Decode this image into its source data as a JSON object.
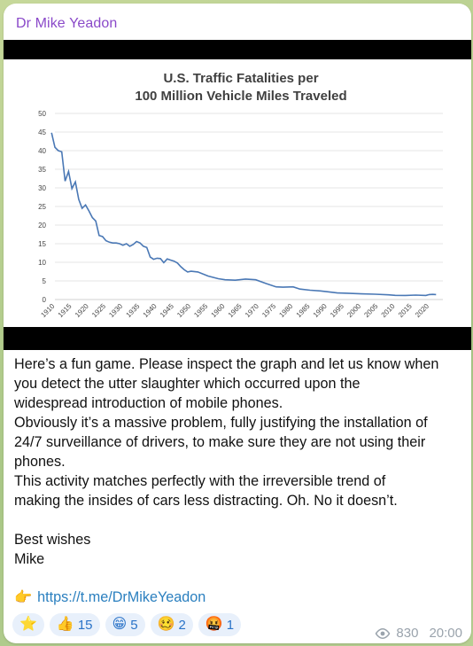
{
  "message": {
    "sender": "Dr Mike Yeadon",
    "text_lines": [
      "Here’s a fun game. Please inspect the graph and let us know when",
      "you detect the utter slaughter which occurred upon the",
      "widespread introduction of mobile phones.",
      "Obviously it’s a massive problem, fully justifying the installation of",
      "24/7 surveillance of drivers, to make sure they are not using their",
      "phones.",
      "This activity matches perfectly with the irreversible trend of",
      "making the insides of cars less distracting. Oh. No it doesn’t.",
      "",
      "Best wishes",
      "Mike"
    ],
    "link": "https://t.me/DrMikeYeadon",
    "link_icon": "pointing-hand-icon",
    "views": "830",
    "time": "20:00",
    "reactions": [
      {
        "emoji": "⭐",
        "icon": "star-icon",
        "count": ""
      },
      {
        "emoji": "👍",
        "icon": "thumbs-up-icon",
        "count": "15"
      },
      {
        "emoji": "😁",
        "icon": "grin-icon",
        "count": "5"
      },
      {
        "emoji": "🥴",
        "icon": "woozy-icon",
        "count": "2"
      },
      {
        "emoji": "🤬",
        "icon": "cursing-icon",
        "count": "1"
      }
    ],
    "colors": {
      "sender": "#8a49c9",
      "link": "#2a7fbf",
      "reaction_bg": "#e8f0fb",
      "reaction_text": "#2a73c8"
    }
  },
  "chart_data": {
    "type": "line",
    "title": "U.S. Traffic Fatalities per",
    "subtitle": "100 Million Vehicle Miles Traveled",
    "xlabel": "",
    "ylabel": "",
    "ylim": [
      0,
      50
    ],
    "yticks": [
      0,
      5,
      10,
      15,
      20,
      25,
      30,
      35,
      40,
      45,
      50
    ],
    "xlim": [
      1910,
      2024
    ],
    "xticks": [
      1910,
      1915,
      1920,
      1925,
      1930,
      1935,
      1940,
      1945,
      1950,
      1955,
      1960,
      1965,
      1970,
      1975,
      1980,
      1985,
      1990,
      1995,
      2000,
      2005,
      2010,
      2015,
      2020
    ],
    "grid": true,
    "line_color": "#4a78b5",
    "series": [
      {
        "x": [
          1909,
          1910,
          1911,
          1912,
          1913,
          1914,
          1915,
          1916,
          1917,
          1918,
          1919,
          1920,
          1921,
          1922,
          1923,
          1924,
          1925,
          1926,
          1927,
          1928,
          1929,
          1930,
          1931,
          1932,
          1933,
          1934,
          1935,
          1936,
          1937,
          1938,
          1939,
          1940,
          1941,
          1942,
          1943,
          1944,
          1945,
          1946,
          1947,
          1948,
          1949,
          1950,
          1952,
          1955,
          1958,
          1960,
          1963,
          1966,
          1969,
          1972,
          1975,
          1977,
          1980,
          1982,
          1985,
          1988,
          1990,
          1993,
          1996,
          2000,
          2004,
          2008,
          2010,
          2013,
          2016,
          2019,
          2020,
          2021,
          2022
        ],
        "y": [
          44.8,
          40.9,
          40.0,
          39.7,
          31.8,
          34.4,
          29.8,
          31.6,
          26.9,
          24.5,
          25.4,
          23.8,
          22.0,
          21.1,
          17.2,
          16.9,
          15.8,
          15.4,
          15.2,
          15.2,
          15.0,
          14.6,
          15.0,
          14.3,
          14.8,
          15.6,
          15.2,
          14.3,
          14.0,
          11.4,
          10.8,
          11.1,
          11.0,
          9.9,
          10.9,
          10.6,
          10.3,
          9.8,
          8.8,
          8.0,
          7.4,
          7.6,
          7.4,
          6.3,
          5.6,
          5.3,
          5.2,
          5.5,
          5.3,
          4.3,
          3.4,
          3.3,
          3.4,
          2.8,
          2.5,
          2.3,
          2.1,
          1.75,
          1.7,
          1.53,
          1.44,
          1.26,
          1.11,
          1.1,
          1.18,
          1.1,
          1.34,
          1.37,
          1.33
        ]
      }
    ]
  }
}
